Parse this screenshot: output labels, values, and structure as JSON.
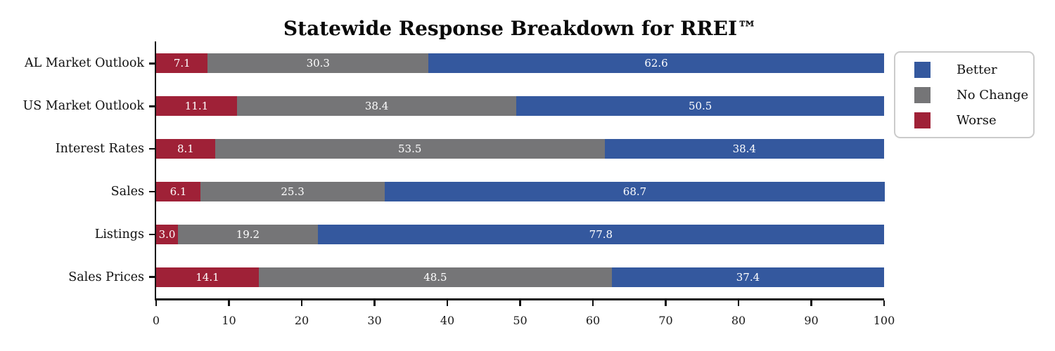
{
  "title": "Statewide Response Breakdown for RREI™",
  "chart_data": {
    "type": "bar",
    "orientation": "horizontal",
    "stacked": true,
    "title": "Statewide Response Breakdown for RREI™",
    "categories": [
      "AL Market Outlook",
      "US Market Outlook",
      "Interest Rates",
      "Sales",
      "Listings",
      "Sales Prices"
    ],
    "series": [
      {
        "name": "Worse",
        "color": "#9f2137",
        "values": [
          7.1,
          11.1,
          8.1,
          6.1,
          3.0,
          14.1
        ]
      },
      {
        "name": "No Change",
        "color": "#757577",
        "values": [
          30.3,
          38.4,
          53.5,
          25.3,
          19.2,
          48.5
        ]
      },
      {
        "name": "Better",
        "color": "#34589e",
        "values": [
          62.6,
          50.5,
          38.4,
          68.7,
          77.8,
          37.4
        ]
      }
    ],
    "bar_labels_shown": true,
    "bar_label_color": "#ffffff",
    "xlabel": "",
    "ylabel": "",
    "xlim": [
      0,
      100
    ],
    "x_ticks": [
      0,
      10,
      20,
      30,
      40,
      50,
      60,
      70,
      80,
      90,
      100
    ],
    "grid": false,
    "legend": {
      "position": "upper-right",
      "entries": [
        "Better",
        "No Change",
        "Worse"
      ]
    },
    "axis_color": "#111111"
  }
}
